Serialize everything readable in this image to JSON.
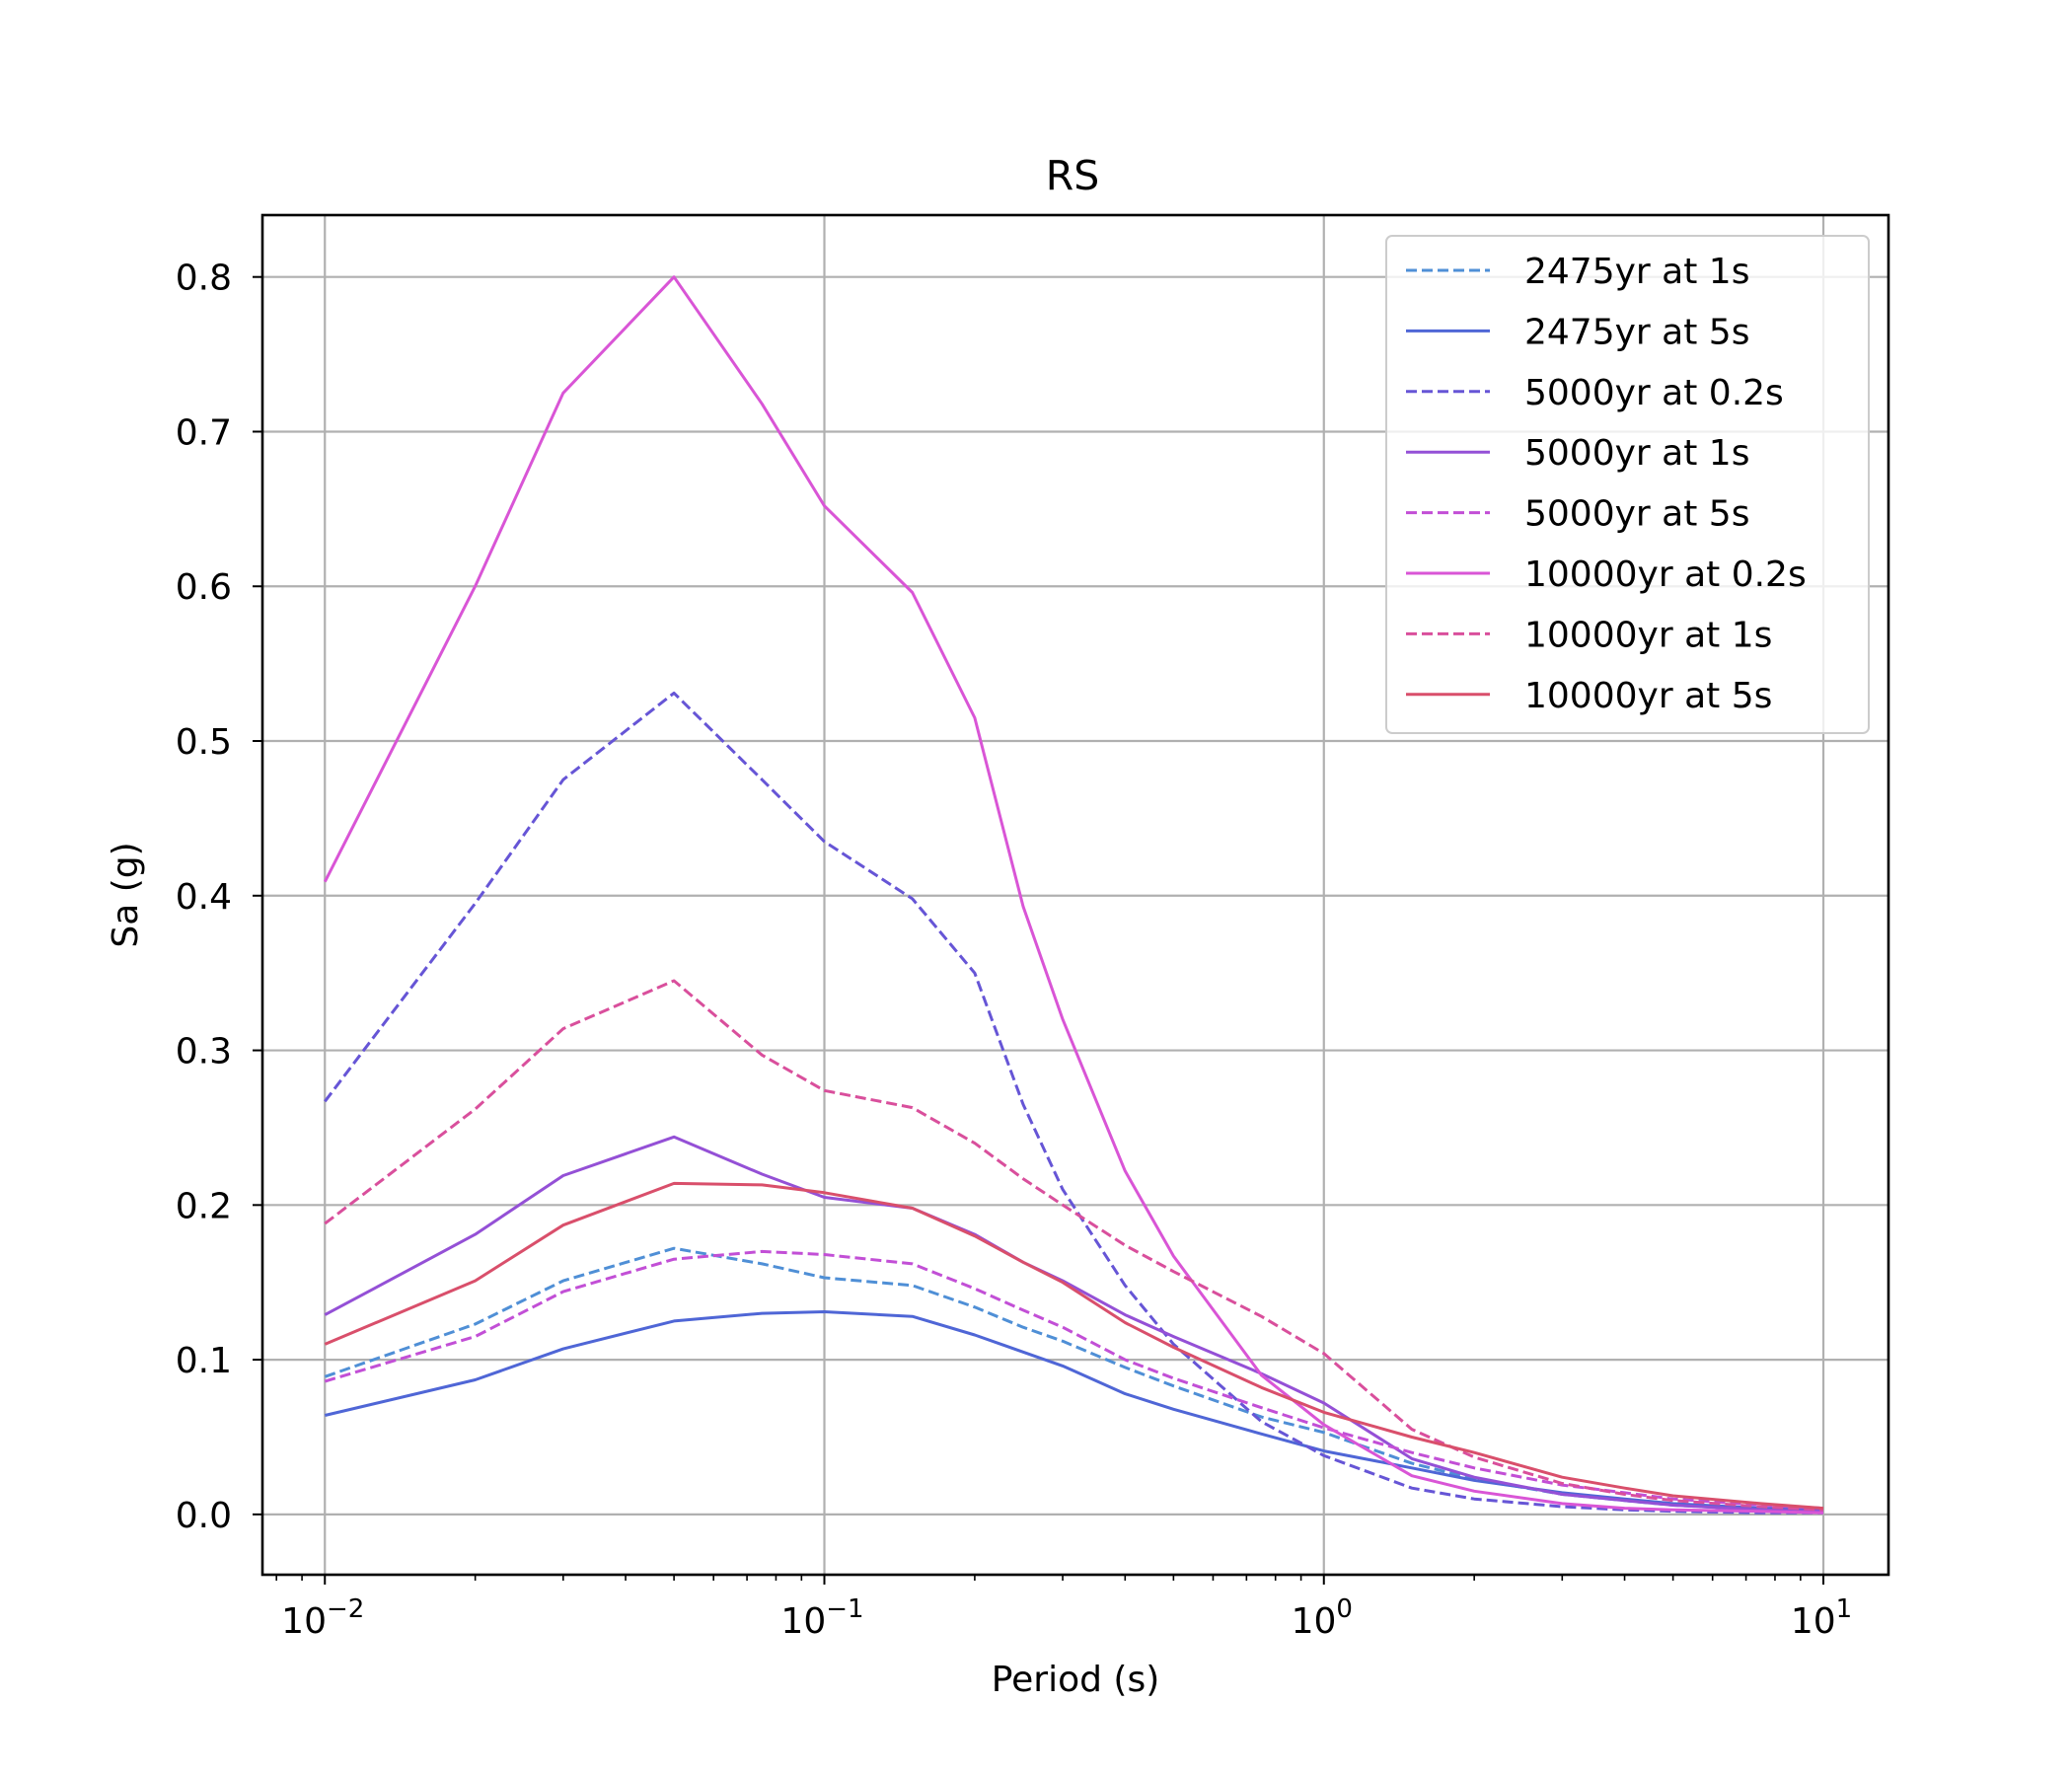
{
  "chart_data": {
    "type": "line",
    "title": "RS",
    "xlabel": "Period (s)",
    "ylabel": "Sa (g)",
    "xscale": "log",
    "xlim": [
      0.0075,
      13.5
    ],
    "ylim": [
      -0.039,
      0.84
    ],
    "grid": true,
    "legend_position": "top-right",
    "xticks": [
      {
        "value": 0.01,
        "base": "10",
        "exp": "−2"
      },
      {
        "value": 0.1,
        "base": "10",
        "exp": "−1"
      },
      {
        "value": 1,
        "base": "10",
        "exp": "0"
      },
      {
        "value": 10,
        "base": "10",
        "exp": "1"
      }
    ],
    "yticks": [
      {
        "value": 0.0,
        "label": "0.0"
      },
      {
        "value": 0.1,
        "label": "0.1"
      },
      {
        "value": 0.2,
        "label": "0.2"
      },
      {
        "value": 0.3,
        "label": "0.3"
      },
      {
        "value": 0.4,
        "label": "0.4"
      },
      {
        "value": 0.5,
        "label": "0.5"
      },
      {
        "value": 0.6,
        "label": "0.6"
      },
      {
        "value": 0.7,
        "label": "0.7"
      },
      {
        "value": 0.8,
        "label": "0.8"
      }
    ],
    "x": [
      0.01,
      0.02,
      0.03,
      0.05,
      0.075,
      0.1,
      0.15,
      0.2,
      0.25,
      0.3,
      0.4,
      0.5,
      0.75,
      1.0,
      1.5,
      2.0,
      3.0,
      4.0,
      5.0,
      7.5,
      10.0
    ],
    "series": [
      {
        "name": "2475yr at 1s",
        "color": "#4f8fd6",
        "dash": true,
        "values": [
          0.089,
          0.123,
          0.151,
          0.172,
          0.162,
          0.153,
          0.148,
          0.134,
          0.121,
          0.112,
          0.095,
          0.083,
          0.063,
          0.053,
          0.033,
          0.023,
          0.013,
          0.009,
          0.006,
          0.003,
          0.002
        ]
      },
      {
        "name": "2475yr at 5s",
        "color": "#4f66d6",
        "dash": false,
        "values": [
          0.064,
          0.087,
          0.107,
          0.125,
          0.13,
          0.131,
          0.128,
          0.116,
          0.105,
          0.096,
          0.078,
          0.068,
          0.052,
          0.041,
          0.03,
          0.022,
          0.014,
          0.01,
          0.007,
          0.004,
          0.003
        ]
      },
      {
        "name": "5000yr at 0.2s",
        "color": "#6655d6",
        "dash": true,
        "values": [
          0.267,
          0.395,
          0.475,
          0.531,
          0.475,
          0.435,
          0.398,
          0.35,
          0.265,
          0.21,
          0.148,
          0.11,
          0.06,
          0.038,
          0.017,
          0.01,
          0.005,
          0.003,
          0.002,
          0.001,
          0.001
        ]
      },
      {
        "name": "5000yr at 1s",
        "color": "#9450d6",
        "dash": false,
        "values": [
          0.129,
          0.181,
          0.219,
          0.244,
          0.22,
          0.205,
          0.198,
          0.181,
          0.163,
          0.151,
          0.129,
          0.115,
          0.091,
          0.072,
          0.036,
          0.024,
          0.013,
          0.009,
          0.006,
          0.003,
          0.002
        ]
      },
      {
        "name": "5000yr at 5s",
        "color": "#c24fd6",
        "dash": true,
        "values": [
          0.086,
          0.115,
          0.144,
          0.165,
          0.17,
          0.168,
          0.162,
          0.146,
          0.132,
          0.121,
          0.1,
          0.088,
          0.069,
          0.056,
          0.04,
          0.03,
          0.019,
          0.014,
          0.01,
          0.006,
          0.004
        ]
      },
      {
        "name": "10000yr at 0.2s",
        "color": "#d955d6",
        "dash": false,
        "values": [
          0.409,
          0.6,
          0.725,
          0.8,
          0.718,
          0.652,
          0.596,
          0.515,
          0.393,
          0.32,
          0.222,
          0.167,
          0.09,
          0.058,
          0.025,
          0.015,
          0.007,
          0.004,
          0.003,
          0.002,
          0.001
        ]
      },
      {
        "name": "10000yr at 1s",
        "color": "#d94f9c",
        "dash": true,
        "values": [
          0.188,
          0.262,
          0.314,
          0.345,
          0.297,
          0.274,
          0.263,
          0.24,
          0.217,
          0.2,
          0.174,
          0.157,
          0.128,
          0.104,
          0.055,
          0.037,
          0.02,
          0.013,
          0.009,
          0.005,
          0.003
        ]
      },
      {
        "name": "10000yr at 5s",
        "color": "#d94f6b",
        "dash": false,
        "values": [
          0.11,
          0.151,
          0.187,
          0.214,
          0.213,
          0.208,
          0.198,
          0.18,
          0.163,
          0.15,
          0.124,
          0.108,
          0.082,
          0.066,
          0.05,
          0.04,
          0.024,
          0.017,
          0.012,
          0.007,
          0.004
        ]
      }
    ]
  }
}
